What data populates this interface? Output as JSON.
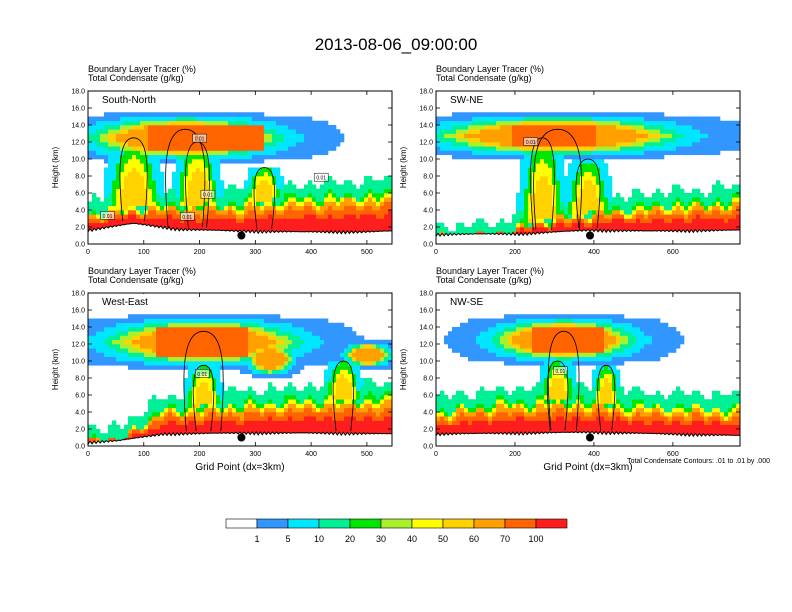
{
  "figure": {
    "title": "2013-08-06_09:00:00",
    "contour_note": "Total Condensate Contours: .01 to .01 by .000"
  },
  "colors": {
    "levels": [
      "#ffffff",
      "#3296ff",
      "#00e6ff",
      "#00f096",
      "#00e600",
      "#aaf02d",
      "#ffff00",
      "#ffd200",
      "#ffa000",
      "#ff6400",
      "#ff1e1e"
    ],
    "contour": "#000000",
    "background": "#ffffff"
  },
  "chart_data": [
    {
      "type": "heatmap",
      "panel": "South-North",
      "subtitle_1": "Boundary Layer Tracer    (%)",
      "subtitle_2": "Total Condensate    (g/kg)",
      "ylabel": "Height (km)",
      "xlabel": "",
      "xlim": [
        0,
        545
      ],
      "ylim": [
        0,
        18
      ],
      "xticks": [
        0,
        100,
        200,
        300,
        400,
        500
      ],
      "yticks": [
        0.0,
        2.0,
        4.0,
        6.0,
        8.0,
        10.0,
        12.0,
        14.0,
        16.0,
        18.0
      ],
      "marker_x": 275,
      "marker_y": 1.0,
      "contour_labels": [
        {
          "x": 200,
          "y": 12.4,
          "text": "0.01"
        },
        {
          "x": 418,
          "y": 7.8,
          "text": "0.01"
        },
        {
          "x": 215,
          "y": 5.8,
          "text": "0.01"
        },
        {
          "x": 178,
          "y": 3.2,
          "text": "0.01"
        },
        {
          "x": 35,
          "y": 3.3,
          "text": "0.01"
        }
      ]
    },
    {
      "type": "heatmap",
      "panel": "SW-NE",
      "subtitle_1": "Boundary Layer Tracer    (%)",
      "subtitle_2": "Total Condensate    (g/kg)",
      "ylabel": "Height (km)",
      "xlabel": "",
      "xlim": [
        0,
        770
      ],
      "ylim": [
        0,
        18
      ],
      "xticks": [
        0,
        200,
        400,
        600
      ],
      "yticks": [
        0.0,
        2.0,
        4.0,
        6.0,
        8.0,
        10.0,
        12.0,
        14.0,
        16.0,
        18.0
      ],
      "marker_x": 390,
      "marker_y": 1.0,
      "contour_labels": [
        {
          "x": 240,
          "y": 12.0,
          "text": "0.01"
        }
      ]
    },
    {
      "type": "heatmap",
      "panel": "West-East",
      "subtitle_1": "Boundary Layer Tracer    (%)",
      "subtitle_2": "Total Condensate    (g/kg)",
      "ylabel": "Height (km)",
      "xlabel": "Grid Point (dx=3km)",
      "xlim": [
        0,
        545
      ],
      "ylim": [
        0,
        18
      ],
      "xticks": [
        0,
        100,
        200,
        300,
        400,
        500
      ],
      "yticks": [
        0.0,
        2.0,
        4.0,
        6.0,
        8.0,
        10.0,
        12.0,
        14.0,
        16.0,
        18.0
      ],
      "marker_x": 275,
      "marker_y": 1.0,
      "contour_labels": [
        {
          "x": 205,
          "y": 8.5,
          "text": "0.01"
        }
      ]
    },
    {
      "type": "heatmap",
      "panel": "NW-SE",
      "subtitle_1": "Boundary Layer Tracer    (%)",
      "subtitle_2": "Total Condensate    (g/kg)",
      "ylabel": "Height (km)",
      "xlabel": "Grid Point (dx=3km)",
      "xlim": [
        0,
        770
      ],
      "ylim": [
        0,
        18
      ],
      "xticks": [
        0,
        200,
        400,
        600
      ],
      "yticks": [
        0.0,
        2.0,
        4.0,
        6.0,
        8.0,
        10.0,
        12.0,
        14.0,
        16.0,
        18.0
      ],
      "marker_x": 390,
      "marker_y": 1.0,
      "contour_labels": [
        {
          "x": 315,
          "y": 8.8,
          "text": "0.01"
        }
      ]
    }
  ],
  "colorbar": {
    "labels": [
      "1",
      "5",
      "10",
      "20",
      "30",
      "40",
      "50",
      "60",
      "70",
      "100"
    ]
  }
}
